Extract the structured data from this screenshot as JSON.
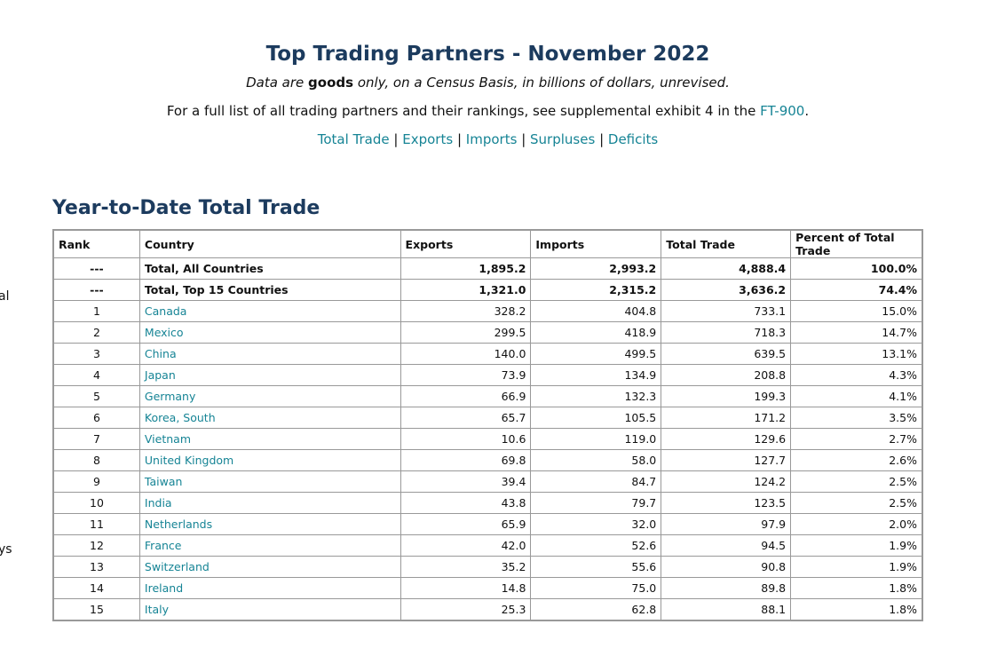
{
  "header": {
    "title": "Top Trading Partners - November 2022",
    "subtitle": [
      "Data are ",
      "goods",
      " only, on a Census Basis, in billions of dollars, unrevised."
    ],
    "note": [
      "For a full list of all trading partners and their rankings, see supplemental exhibit 4 in the ",
      "FT-900",
      "."
    ]
  },
  "nav": {
    "links": [
      "Total Trade",
      "Exports",
      "Imports",
      "Surpluses",
      "Deficits"
    ],
    "separator": "|"
  },
  "sidebar_fragments": [
    "al",
    "ys"
  ],
  "section": {
    "title": "Year-to-Date Total Trade"
  },
  "table": {
    "columns": [
      "Rank",
      "Country",
      "Exports",
      "Imports",
      "Total Trade",
      "Percent of Total Trade"
    ],
    "rows": [
      [
        "---",
        "Total, All Countries",
        "1,895.2",
        "2,993.2",
        "4,888.4",
        "100.0%"
      ],
      [
        "---",
        "Total, Top 15 Countries",
        "1,321.0",
        "2,315.2",
        "3,636.2",
        "74.4%"
      ],
      [
        "1",
        "Canada",
        "328.2",
        "404.8",
        "733.1",
        "15.0%"
      ],
      [
        "2",
        "Mexico",
        "299.5",
        "418.9",
        "718.3",
        "14.7%"
      ],
      [
        "3",
        "China",
        "140.0",
        "499.5",
        "639.5",
        "13.1%"
      ],
      [
        "4",
        "Japan",
        "73.9",
        "134.9",
        "208.8",
        "4.3%"
      ],
      [
        "5",
        "Germany",
        "66.9",
        "132.3",
        "199.3",
        "4.1%"
      ],
      [
        "6",
        "Korea, South",
        "65.7",
        "105.5",
        "171.2",
        "3.5%"
      ],
      [
        "7",
        "Vietnam",
        "10.6",
        "119.0",
        "129.6",
        "2.7%"
      ],
      [
        "8",
        "United Kingdom",
        "69.8",
        "58.0",
        "127.7",
        "2.6%"
      ],
      [
        "9",
        "Taiwan",
        "39.4",
        "84.7",
        "124.2",
        "2.5%"
      ],
      [
        "10",
        "India",
        "43.8",
        "79.7",
        "123.5",
        "2.5%"
      ],
      [
        "11",
        "Netherlands",
        "65.9",
        "32.0",
        "97.9",
        "2.0%"
      ],
      [
        "12",
        "France",
        "42.0",
        "52.6",
        "94.5",
        "1.9%"
      ],
      [
        "13",
        "Switzerland",
        "35.2",
        "55.6",
        "90.8",
        "1.9%"
      ],
      [
        "14",
        "Ireland",
        "14.8",
        "75.0",
        "89.8",
        "1.8%"
      ],
      [
        "15",
        "Italy",
        "25.3",
        "62.8",
        "88.1",
        "1.8%"
      ]
    ]
  }
}
